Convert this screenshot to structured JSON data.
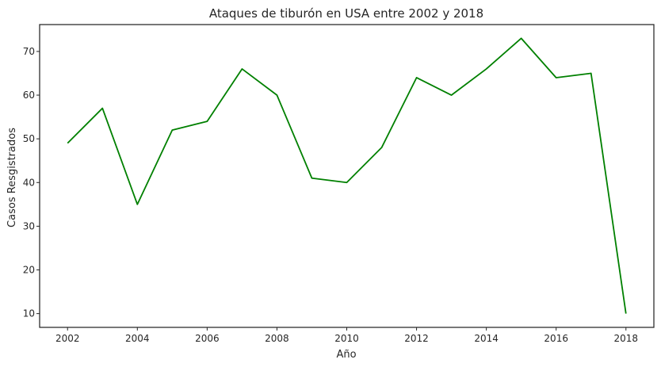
{
  "chart_data": {
    "type": "line",
    "title": "Ataques de tiburón en USA entre 2002 y 2018",
    "xlabel": "Año",
    "ylabel": "Casos Resgistrados",
    "x": [
      2002,
      2003,
      2004,
      2005,
      2006,
      2007,
      2008,
      2009,
      2010,
      2011,
      2012,
      2013,
      2014,
      2015,
      2016,
      2017,
      2018
    ],
    "series": [
      {
        "values": [
          49,
          57,
          35,
          52,
          54,
          66,
          60,
          41,
          40,
          48,
          64,
          60,
          66,
          73,
          64,
          65,
          10
        ],
        "color": "#008000"
      }
    ],
    "xlim": [
      2001.2,
      2018.8
    ],
    "ylim": [
      6.85,
      76.15
    ],
    "xticks": [
      2002,
      2004,
      2006,
      2008,
      2010,
      2012,
      2014,
      2016,
      2018
    ],
    "yticks": [
      10,
      20,
      30,
      40,
      50,
      60,
      70
    ],
    "grid": false,
    "legend": "none"
  }
}
